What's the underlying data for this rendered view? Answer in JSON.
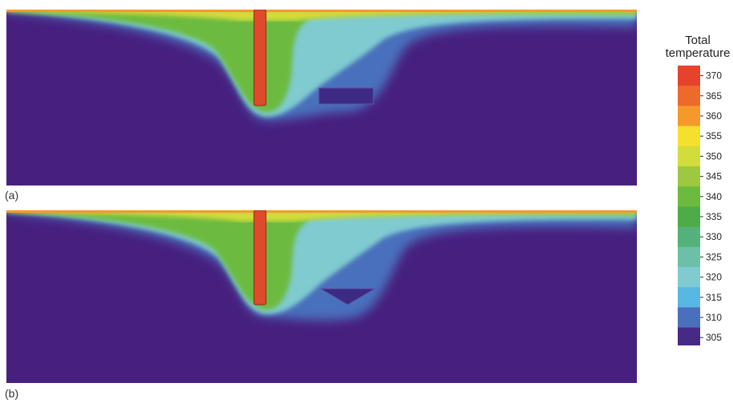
{
  "panels": [
    {
      "label": "(a)",
      "obstacle": "rectangle"
    },
    {
      "label": "(b)",
      "obstacle": "triangle"
    }
  ],
  "colorbar": {
    "title_line1": "Total",
    "title_line2": "temperature",
    "ticks": [
      "370",
      "365",
      "360",
      "355",
      "350",
      "345",
      "340",
      "335",
      "330",
      "325",
      "320",
      "315",
      "310",
      "305"
    ],
    "colors": [
      "#e6432c",
      "#ee6a2a",
      "#f59a2a",
      "#f5e02e",
      "#d2dc3a",
      "#9cc93f",
      "#6cbb3f",
      "#4dab48",
      "#52b27a",
      "#6cc0a7",
      "#7fcbd0",
      "#58b7e3",
      "#4a6fbc",
      "#462a86"
    ]
  },
  "colors": {
    "background_fluid": "#47207f",
    "hot_wall": "#e04a2a",
    "warm_plume": "#6cbf3e",
    "cool_plume": "#7fc6cf",
    "mid_blue": "#5a7ec5"
  }
}
